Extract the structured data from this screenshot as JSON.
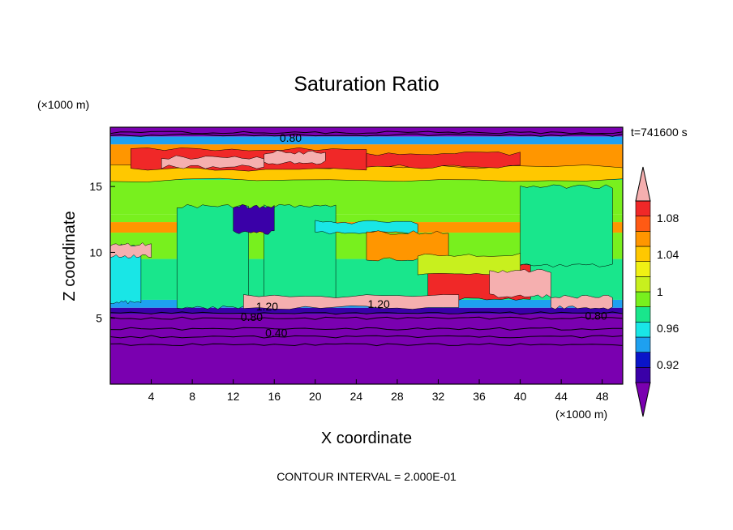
{
  "chart_data": {
    "type": "heatmap",
    "title": "Saturation Ratio",
    "xlabel": "X coordinate",
    "ylabel": "Z coordinate",
    "x_unit": "(×1000 m)",
    "y_unit": "(×1000 m)",
    "time_label": "t=741600 s",
    "footer": "CONTOUR INTERVAL = 2.000E-01",
    "xlim": [
      0,
      50
    ],
    "ylim": [
      0,
      19.5
    ],
    "x_ticks": [
      4,
      8,
      12,
      16,
      20,
      24,
      28,
      32,
      36,
      40,
      44,
      48
    ],
    "y_ticks": [
      5,
      10,
      15
    ],
    "contour_labels": [
      {
        "text": "0.80",
        "x": 17.6,
        "z": 18.7
      },
      {
        "text": "0.40",
        "x": 16.2,
        "z": 3.9
      },
      {
        "text": "0.80",
        "x": 13.8,
        "z": 5.1
      },
      {
        "text": "1.20",
        "x": 15.3,
        "z": 5.9
      },
      {
        "text": "1.20",
        "x": 26.2,
        "z": 6.1
      },
      {
        "text": "0.80",
        "x": 47.4,
        "z": 5.2
      }
    ],
    "colorbar": {
      "levels": [
        "0.92",
        "0.96",
        "1",
        "1.04",
        "1.08"
      ],
      "colors": [
        "#7a00b0",
        "#3a00a8",
        "#0a14c8",
        "#1ea0f0",
        "#19e6e6",
        "#19e68c",
        "#78f01e",
        "#c8f01e",
        "#f0f014",
        "#ffc800",
        "#ff9600",
        "#ff5a14",
        "#f02828",
        "#f5afaf"
      ]
    },
    "bands": [
      {
        "z": [
          0,
          5.3
        ],
        "color": "#7a00b0"
      },
      {
        "z": [
          5.3,
          5.8
        ],
        "color": "#3a00a8"
      },
      {
        "z": [
          5.8,
          6.4
        ],
        "color": "#1ea0f0"
      },
      {
        "z": [
          6.4,
          9.5
        ],
        "color": "#19e68c"
      },
      {
        "z": [
          9.5,
          11.5
        ],
        "color": "#78f01e"
      },
      {
        "z": [
          11.5,
          12.3
        ],
        "color": "#ff9600"
      },
      {
        "z": [
          12.3,
          12.9
        ],
        "color": "#78f01e"
      },
      {
        "z": [
          12.9,
          15.5
        ],
        "color": "#78f01e"
      },
      {
        "z": [
          15.5,
          16.2
        ],
        "color": "#19e68c"
      },
      {
        "z": [
          16.2,
          18.2
        ],
        "color": "#ff9600"
      },
      {
        "z": [
          18.2,
          18.8
        ],
        "color": "#1ea0f0"
      },
      {
        "z": [
          18.8,
          19.5
        ],
        "color": "#7a00b0"
      }
    ],
    "patches": [
      {
        "x": [
          6.5,
          13.5
        ],
        "z": [
          5.8,
          13.5
        ],
        "color": "#19e68c"
      },
      {
        "x": [
          15,
          22
        ],
        "z": [
          6.4,
          13.5
        ],
        "color": "#19e68c"
      },
      {
        "x": [
          40,
          49
        ],
        "z": [
          9,
          15
        ],
        "color": "#19e68c"
      },
      {
        "x": [
          0,
          3
        ],
        "z": [
          6.2,
          10.5
        ],
        "color": "#19e6e6"
      },
      {
        "x": [
          12,
          16
        ],
        "z": [
          11.5,
          13.5
        ],
        "color": "#3a00a8"
      },
      {
        "x": [
          20,
          30
        ],
        "z": [
          11.5,
          12.3
        ],
        "color": "#19e6e6"
      },
      {
        "x": [
          25,
          33
        ],
        "z": [
          9.5,
          11.5
        ],
        "color": "#ff9600"
      },
      {
        "x": [
          31,
          41
        ],
        "z": [
          6.4,
          9
        ],
        "color": "#f02828"
      },
      {
        "x": [
          30,
          40
        ],
        "z": [
          8.3,
          9.8
        ],
        "color": "#c8f01e"
      },
      {
        "x": [
          0,
          50
        ],
        "z": [
          15.5,
          16.5
        ],
        "color": "#ffc800"
      },
      {
        "x": [
          2,
          25
        ],
        "z": [
          16.3,
          17.8
        ],
        "color": "#f02828"
      },
      {
        "x": [
          25,
          40
        ],
        "z": [
          16.5,
          17.5
        ],
        "color": "#f02828"
      },
      {
        "x": [
          5,
          15
        ],
        "z": [
          16.5,
          17.2
        ],
        "color": "#f5afaf"
      },
      {
        "x": [
          15,
          21
        ],
        "z": [
          16.8,
          17.6
        ],
        "color": "#f5afaf"
      },
      {
        "x": [
          13,
          34
        ],
        "z": [
          5.8,
          6.7
        ],
        "color": "#f5afaf"
      },
      {
        "x": [
          37,
          43
        ],
        "z": [
          6.7,
          8.6
        ],
        "color": "#f5afaf"
      },
      {
        "x": [
          43,
          49
        ],
        "z": [
          5.8,
          6.6
        ],
        "color": "#f5afaf"
      },
      {
        "x": [
          0,
          4
        ],
        "z": [
          9.7,
          10.6
        ],
        "color": "#f5afaf"
      }
    ],
    "grid": false,
    "legend": "right"
  }
}
